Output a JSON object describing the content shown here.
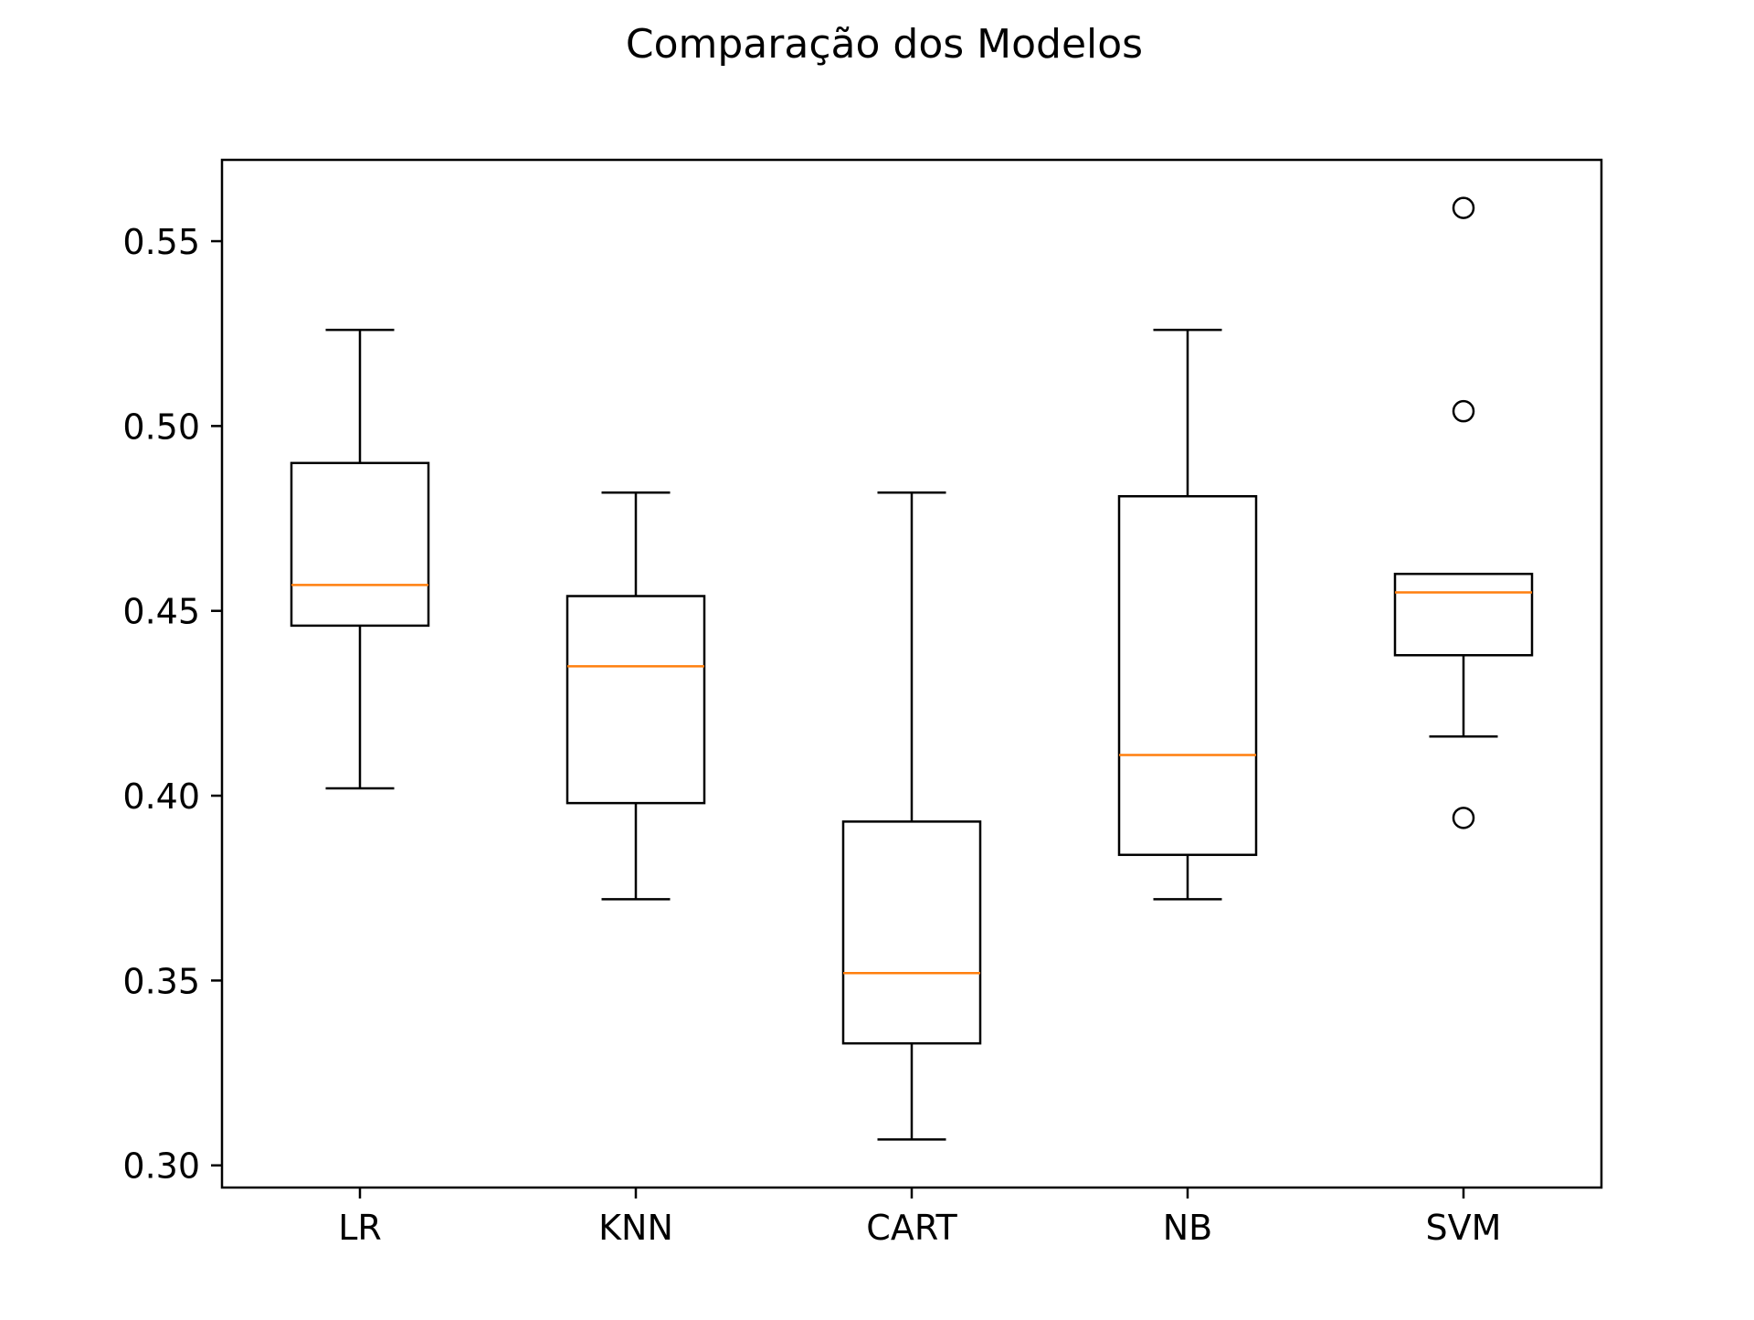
{
  "chart_data": {
    "type": "boxplot",
    "title": "Comparação dos Modelos",
    "xlabel": "",
    "ylabel": "",
    "ylim": [
      0.294,
      0.572
    ],
    "yticks": [
      0.3,
      0.35,
      0.4,
      0.45,
      0.5,
      0.55
    ],
    "ytick_labels": [
      "0.30",
      "0.35",
      "0.40",
      "0.45",
      "0.50",
      "0.55"
    ],
    "grid": false,
    "categories": [
      "LR",
      "KNN",
      "CART",
      "NB",
      "SVM"
    ],
    "boxes": [
      {
        "name": "LR",
        "whisker_low": 0.402,
        "q1": 0.446,
        "median": 0.457,
        "q3": 0.49,
        "whisker_high": 0.526,
        "outliers": []
      },
      {
        "name": "KNN",
        "whisker_low": 0.372,
        "q1": 0.398,
        "median": 0.435,
        "q3": 0.454,
        "whisker_high": 0.482,
        "outliers": []
      },
      {
        "name": "CART",
        "whisker_low": 0.307,
        "q1": 0.333,
        "median": 0.352,
        "q3": 0.393,
        "whisker_high": 0.482,
        "outliers": []
      },
      {
        "name": "NB",
        "whisker_low": 0.372,
        "q1": 0.384,
        "median": 0.411,
        "q3": 0.481,
        "whisker_high": 0.526,
        "outliers": []
      },
      {
        "name": "SVM",
        "whisker_low": 0.416,
        "q1": 0.438,
        "median": 0.455,
        "q3": 0.46,
        "whisker_high": 0.46,
        "outliers": [
          0.394,
          0.504,
          0.559
        ]
      }
    ],
    "colors": {
      "box": "#000000",
      "median": "#ff7f0e",
      "background": "#ffffff"
    }
  }
}
